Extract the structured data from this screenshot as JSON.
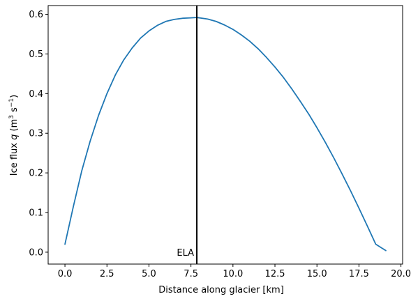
{
  "chart_data": {
    "type": "line",
    "title": "",
    "xlabel": "Distance along glacier [km]",
    "ylabel": {
      "prefix": "Ice flux ",
      "symbol": "q",
      "unit_open": " (m",
      "unit_sup1": "3",
      "unit_mid": " s",
      "unit_sup2": "−1",
      "unit_close": ")"
    },
    "xlim": [
      -1.0,
      20.1
    ],
    "ylim": [
      -0.03,
      0.622
    ],
    "xticks": [
      0.0,
      2.5,
      5.0,
      7.5,
      10.0,
      12.5,
      15.0,
      17.5,
      20.0
    ],
    "xtick_labels": [
      "0.0",
      "2.5",
      "5.0",
      "7.5",
      "10.0",
      "12.5",
      "15.0",
      "17.5",
      "20.0"
    ],
    "yticks": [
      0.0,
      0.1,
      0.2,
      0.3,
      0.4,
      0.5,
      0.6
    ],
    "ytick_labels": [
      "0.0",
      "0.1",
      "0.2",
      "0.3",
      "0.4",
      "0.5",
      "0.6"
    ],
    "grid": false,
    "series": [
      {
        "color": "#1f77b4",
        "x": [
          0.0,
          0.5,
          1.0,
          1.5,
          2.0,
          2.5,
          3.0,
          3.5,
          4.0,
          4.5,
          5.0,
          5.5,
          6.0,
          6.5,
          7.0,
          7.5,
          7.85,
          8.5,
          9.0,
          9.5,
          10.0,
          10.5,
          11.0,
          11.5,
          12.0,
          12.5,
          13.0,
          13.5,
          14.0,
          14.5,
          15.0,
          15.5,
          16.0,
          16.5,
          17.0,
          17.5,
          18.0,
          18.5,
          19.1
        ],
        "y": [
          0.02,
          0.115,
          0.205,
          0.28,
          0.345,
          0.4,
          0.447,
          0.485,
          0.515,
          0.54,
          0.558,
          0.572,
          0.582,
          0.587,
          0.59,
          0.591,
          0.592,
          0.588,
          0.582,
          0.573,
          0.562,
          0.548,
          0.532,
          0.513,
          0.491,
          0.467,
          0.441,
          0.412,
          0.381,
          0.349,
          0.314,
          0.277,
          0.238,
          0.197,
          0.155,
          0.111,
          0.066,
          0.02,
          0.004
        ]
      }
    ],
    "annotations": [
      {
        "type": "vline",
        "x": 7.85,
        "color": "#000000",
        "label": "ELA",
        "label_y": 0.0
      }
    ]
  }
}
